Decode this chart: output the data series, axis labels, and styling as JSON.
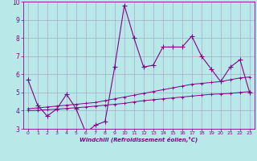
{
  "x": [
    0,
    1,
    2,
    3,
    4,
    5,
    6,
    7,
    8,
    9,
    10,
    11,
    12,
    13,
    14,
    15,
    16,
    17,
    18,
    19,
    20,
    21,
    22,
    23
  ],
  "y_line1": [
    5.7,
    4.3,
    3.7,
    4.1,
    4.9,
    4.1,
    2.8,
    3.2,
    3.4,
    6.4,
    9.8,
    8.0,
    6.4,
    6.5,
    7.5,
    7.5,
    7.5,
    8.1,
    7.0,
    6.3,
    5.6,
    6.4,
    6.8,
    5.0
  ],
  "y_line2": [
    4.1,
    4.15,
    4.2,
    4.25,
    4.3,
    4.35,
    4.4,
    4.45,
    4.55,
    4.65,
    4.75,
    4.85,
    4.95,
    5.05,
    5.15,
    5.25,
    5.35,
    5.45,
    5.5,
    5.55,
    5.6,
    5.7,
    5.8,
    5.85
  ],
  "y_line3": [
    4.0,
    4.02,
    4.05,
    4.08,
    4.12,
    4.16,
    4.2,
    4.25,
    4.3,
    4.35,
    4.4,
    4.48,
    4.55,
    4.6,
    4.65,
    4.7,
    4.75,
    4.8,
    4.85,
    4.9,
    4.92,
    4.95,
    5.0,
    5.05
  ],
  "line_color": "#880088",
  "bg_color": "#b8e8e8",
  "grid_color": "#aaaacc",
  "xlabel": "Windchill (Refroidissement éolien,°C)",
  "ylim": [
    3,
    10
  ],
  "xlim": [
    -0.5,
    23.5
  ],
  "yticks": [
    3,
    4,
    5,
    6,
    7,
    8,
    9,
    10
  ],
  "xticks": [
    0,
    1,
    2,
    3,
    4,
    5,
    6,
    7,
    8,
    9,
    10,
    11,
    12,
    13,
    14,
    15,
    16,
    17,
    18,
    19,
    20,
    21,
    22,
    23
  ]
}
